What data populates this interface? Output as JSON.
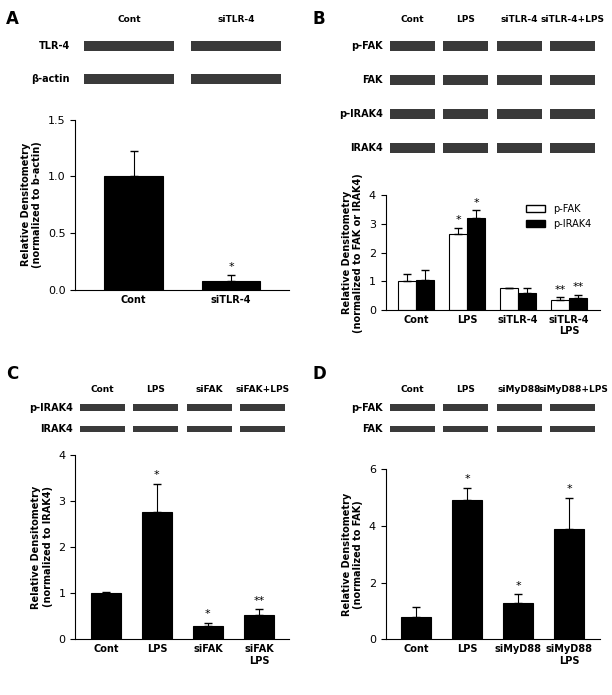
{
  "chart_data": [
    {
      "type": "bar",
      "panel": "A",
      "blot": {
        "lanes": [
          "Cont",
          "siTLR-4"
        ],
        "bands": [
          "TLR-4",
          "β-actin"
        ]
      },
      "categories": [
        "Cont",
        "siTLR-4"
      ],
      "values": [
        1.0,
        0.08
      ],
      "errors": [
        0.22,
        0.05
      ],
      "significance": [
        null,
        "*"
      ],
      "color": "#000000",
      "ylabel": "Relative Densitometry\n(normalized to b-actin)",
      "ylim": [
        0.0,
        1.5
      ],
      "yticks": [
        0.0,
        0.5,
        1.0,
        1.5
      ]
    },
    {
      "type": "bar",
      "panel": "B",
      "blot": {
        "lanes": [
          "Cont",
          "LPS",
          "siTLR-4",
          "siTLR-4+LPS"
        ],
        "bands": [
          "p-FAK",
          "FAK",
          "p-IRAK4",
          "IRAK4"
        ]
      },
      "categories": [
        "Cont",
        "LPS",
        "siTLR-4",
        "siTLR-4\nLPS"
      ],
      "series": [
        {
          "name": "p-FAK",
          "color": "#ffffff",
          "values": [
            1.0,
            2.65,
            0.75,
            0.35
          ],
          "errors": [
            0.25,
            0.22,
            0.03,
            0.1
          ],
          "significance": [
            null,
            "*",
            null,
            "**"
          ]
        },
        {
          "name": "p-IRAK4",
          "color": "#000000",
          "values": [
            1.05,
            3.2,
            0.58,
            0.43
          ],
          "errors": [
            0.35,
            0.28,
            0.2,
            0.1
          ],
          "significance": [
            null,
            "*",
            null,
            "**"
          ]
        }
      ],
      "legend": "upper right",
      "ylabel": "Relative Densitometry\n(normalized to FAK or IRAK4)",
      "ylim": [
        0,
        4
      ],
      "yticks": [
        0,
        1,
        2,
        3,
        4
      ]
    },
    {
      "type": "bar",
      "panel": "C",
      "blot": {
        "lanes": [
          "Cont",
          "LPS",
          "siFAK",
          "siFAK+LPS"
        ],
        "bands": [
          "p-IRAK4",
          "IRAK4"
        ]
      },
      "categories": [
        "Cont",
        "LPS",
        "siFAK",
        "siFAK\nLPS"
      ],
      "values": [
        1.0,
        2.75,
        0.28,
        0.52
      ],
      "errors": [
        0.03,
        0.62,
        0.08,
        0.13
      ],
      "significance": [
        null,
        "*",
        "*",
        "**"
      ],
      "color": "#000000",
      "ylabel": "Relative Densitometry\n(normalized to IRAK4)",
      "ylim": [
        0,
        4
      ],
      "yticks": [
        0,
        1,
        2,
        3,
        4
      ]
    },
    {
      "type": "bar",
      "panel": "D",
      "blot": {
        "lanes": [
          "Cont",
          "LPS",
          "siMyD88",
          "siMyD88+LPS"
        ],
        "bands": [
          "p-FAK",
          "FAK"
        ]
      },
      "categories": [
        "Cont",
        "LPS",
        "siMyD88",
        "siMyD88\nLPS"
      ],
      "values": [
        0.8,
        4.9,
        1.3,
        3.9
      ],
      "errors": [
        0.35,
        0.45,
        0.3,
        1.1
      ],
      "significance": [
        null,
        "*",
        "*",
        "*"
      ],
      "color": "#000000",
      "ylabel": "Relative Densitometry\n(normalized to FAK)",
      "ylim": [
        0,
        6
      ],
      "yticks": [
        0,
        2,
        4,
        6
      ]
    }
  ]
}
